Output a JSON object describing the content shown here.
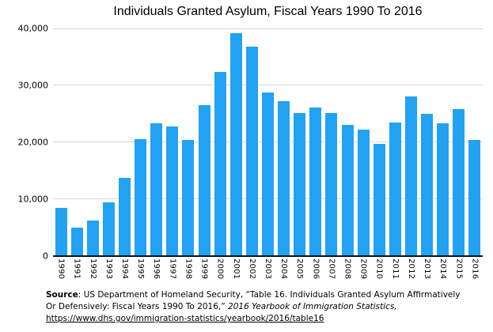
{
  "chart_data": {
    "type": "bar",
    "title": "Individuals Granted Asylum, Fiscal Years 1990 To 2016",
    "xlabel": "",
    "ylabel": "",
    "categories": [
      "1990",
      "1991",
      "1992",
      "1993",
      "1994",
      "1995",
      "1996",
      "1997",
      "1998",
      "1999",
      "2000",
      "2001",
      "2002",
      "2003",
      "2004",
      "2005",
      "2006",
      "2007",
      "2008",
      "2009",
      "2010",
      "2011",
      "2012",
      "2013",
      "2014",
      "2015",
      "2016"
    ],
    "values": [
      8500,
      5000,
      6300,
      9500,
      13700,
      20600,
      23400,
      22800,
      20400,
      26500,
      32400,
      39100,
      36800,
      28700,
      27200,
      25100,
      26100,
      25200,
      23000,
      22200,
      19700,
      23500,
      28000,
      25000,
      23300,
      25900,
      20400
    ],
    "ylim": [
      0,
      40000
    ],
    "yticks": [
      {
        "value": 0,
        "label": "0"
      },
      {
        "value": 10000,
        "label": "10,000"
      },
      {
        "value": 20000,
        "label": "20,000"
      },
      {
        "value": 30000,
        "label": "30,000"
      },
      {
        "value": 40000,
        "label": "40,000"
      }
    ],
    "grid": true,
    "legend": false,
    "bar_color": "#22a2f2",
    "gridline_color": "#d6d6d6",
    "axis_color": "#111111"
  },
  "footer": {
    "source_label": "Source",
    "line1_rest": ": US Department of Homeland Security, “Table 16. Individuals Granted Asylum Affirmatively",
    "line2_plain": "Or Defensively: Fiscal Years 1990 To 2016,” ",
    "line2_italic": "2016 Yearbook of Immigration Statistics,",
    "link_text": "https://www.dhs.gov/immigration-statistics/yearbook/2016/table16"
  }
}
